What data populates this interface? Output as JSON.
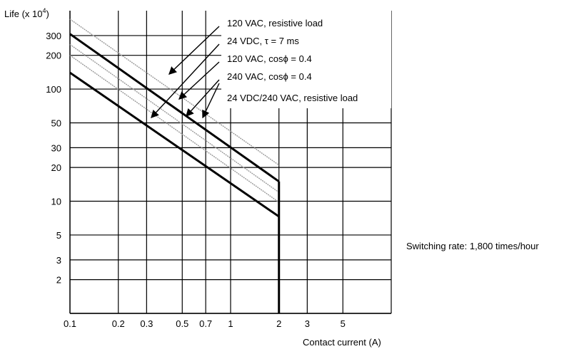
{
  "chart_data": {
    "type": "line",
    "x_scale": "log",
    "y_scale": "log",
    "xlim": [
      0.1,
      10
    ],
    "ylim": [
      1,
      500
    ],
    "grid": true,
    "ylabel_main": "Life (x 10",
    "ylabel_exp": "4",
    "ylabel_close": ")",
    "xlabel": "Contact current (A)",
    "x_ticks": [
      "0.1",
      "0.2",
      "0.3",
      "0.5",
      "0.7",
      "1",
      "2",
      "3",
      "5"
    ],
    "y_ticks": [
      "300",
      "200",
      "100",
      "50",
      "30",
      "20",
      "10",
      "5",
      "3",
      "2"
    ],
    "note": "Switching rate: 1,800 times/hour",
    "series": [
      {
        "name": "120 VAC, resistive load",
        "style": "gray",
        "x": [
          0.1,
          2
        ],
        "y": [
          420,
          21
        ]
      },
      {
        "name": "24 VDC, τ = 7 ms",
        "style": "bold",
        "x": [
          0.1,
          2
        ],
        "y": [
          310,
          15
        ]
      },
      {
        "name": "120 VAC, cosϕ = 0.4",
        "style": "gray",
        "x": [
          0.1,
          2
        ],
        "y": [
          250,
          12
        ]
      },
      {
        "name": "240 VAC, cosϕ = 0.4",
        "style": "gray",
        "x": [
          0.1,
          2
        ],
        "y": [
          200,
          9.8
        ]
      },
      {
        "name": "24 VDC/240 VAC, resistive load",
        "style": "bold",
        "x": [
          0.1,
          2
        ],
        "y": [
          140,
          7.3
        ]
      }
    ],
    "legend_placement": "top-right",
    "colors": {
      "bold": "#000000",
      "gray": "#9a9a9a",
      "grid": "#000000"
    }
  }
}
